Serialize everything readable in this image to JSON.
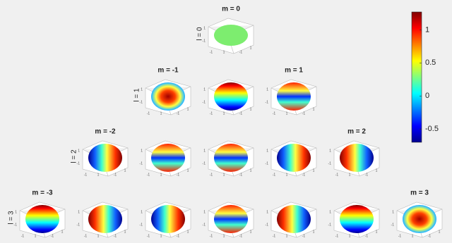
{
  "chart_data": {
    "type": "surface",
    "plots": [
      {
        "l": 0,
        "m": 0,
        "title": "m = 0",
        "ylabel": "l = 0"
      },
      {
        "l": 1,
        "m": -1,
        "title": "m = -1",
        "ylabel": "l = 1"
      },
      {
        "l": 1,
        "m": 0
      },
      {
        "l": 1,
        "m": 1,
        "title": "m = 1"
      },
      {
        "l": 2,
        "m": -2,
        "title": "m = -2",
        "ylabel": "l = 2"
      },
      {
        "l": 2,
        "m": -1
      },
      {
        "l": 2,
        "m": 0
      },
      {
        "l": 2,
        "m": 1
      },
      {
        "l": 2,
        "m": 2,
        "title": "m = 2"
      },
      {
        "l": 3,
        "m": -3,
        "title": "m = -3",
        "ylabel": "l = 3"
      },
      {
        "l": 3,
        "m": -2
      },
      {
        "l": 3,
        "m": -1
      },
      {
        "l": 3,
        "m": 0
      },
      {
        "l": 3,
        "m": 1
      },
      {
        "l": 3,
        "m": 2
      },
      {
        "l": 3,
        "m": 3,
        "title": "m = 3"
      }
    ],
    "axis_ticks": [
      -1,
      1
    ],
    "colorbar": {
      "lim": [
        -0.7,
        1.27
      ],
      "ticks": [
        -0.5,
        0,
        0.5,
        1
      ],
      "colormap": "jet"
    }
  }
}
